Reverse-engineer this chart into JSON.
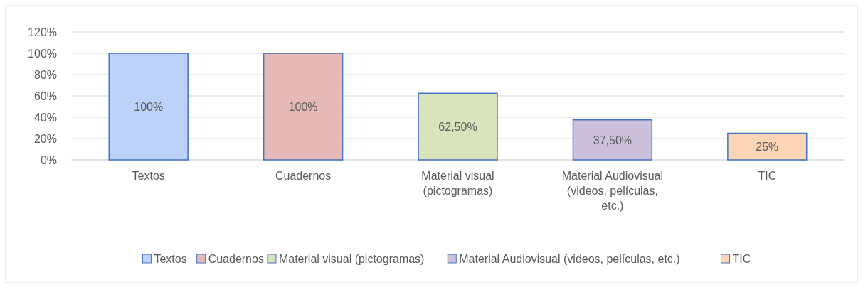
{
  "chart_data": {
    "type": "bar",
    "categories": [
      "Textos",
      "Cuadernos",
      "Material visual (pictogramas)",
      "Material Audiovisual (videos, películas, etc.)",
      "TIC"
    ],
    "series": [
      {
        "name": "Textos",
        "color": "#bcd2f8",
        "values": [
          100,
          null,
          null,
          null,
          null
        ],
        "value_labels": [
          "100%",
          null,
          null,
          null,
          null
        ]
      },
      {
        "name": "Cuadernos",
        "color": "#e6b8b7",
        "values": [
          null,
          100,
          null,
          null,
          null
        ],
        "value_labels": [
          null,
          "100%",
          null,
          null,
          null
        ]
      },
      {
        "name": "Material visual (pictogramas)",
        "color": "#d8e4bc",
        "values": [
          null,
          null,
          62.5,
          null,
          null
        ],
        "value_labels": [
          null,
          null,
          "62,50%",
          null,
          null
        ]
      },
      {
        "name": "Material Audiovisual (videos, películas, etc.)",
        "color": "#ccc0da",
        "values": [
          null,
          null,
          null,
          37.5,
          null
        ],
        "value_labels": [
          null,
          null,
          null,
          "37,50%",
          null
        ]
      },
      {
        "name": "TIC",
        "color": "#fcd5b4",
        "values": [
          null,
          null,
          null,
          null,
          25
        ],
        "value_labels": [
          null,
          null,
          null,
          null,
          "25%"
        ]
      }
    ],
    "ylim": [
      0,
      120
    ],
    "yticks": [
      {
        "value": 0,
        "label": "0%"
      },
      {
        "value": 20,
        "label": "20%"
      },
      {
        "value": 40,
        "label": "40%"
      },
      {
        "value": 60,
        "label": "60%"
      },
      {
        "value": 80,
        "label": "80%"
      },
      {
        "value": 100,
        "label": "100%"
      },
      {
        "value": 120,
        "label": "120%"
      }
    ],
    "grid": "y",
    "legend": "bottom"
  }
}
